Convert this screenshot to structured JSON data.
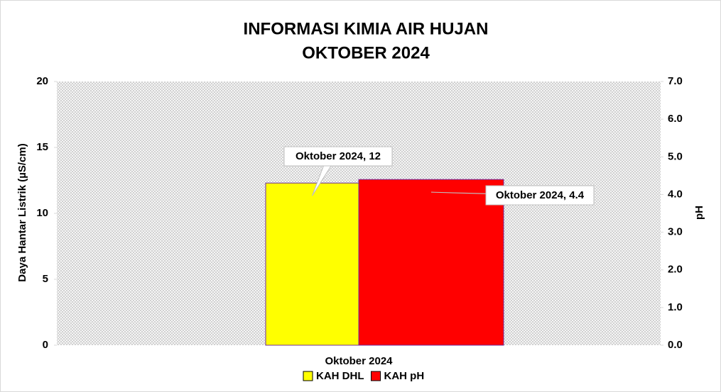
{
  "chart_data": {
    "type": "bar",
    "title": "INFORMASI  KIMIA AIR HUJAN",
    "subtitle": "OKTOBER 2024",
    "y_label": "Daya Hantar Listrik (µS/cm)",
    "y2_label": "pH",
    "categories": [
      "Oktober 2024"
    ],
    "series": [
      {
        "name": "KAH DHL",
        "color": "#ffff00",
        "values": [
          12.3
        ],
        "value_labels": [
          "Oktober 2024, 12"
        ]
      },
      {
        "name": "KAH pH",
        "color": "#ff0000",
        "values": [
          4.4
        ],
        "value_labels": [
          "Oktober 2024, 4.4"
        ],
        "axis": "y2"
      }
    ],
    "ylim": [
      0,
      20
    ],
    "yticks": [
      0,
      5,
      10,
      15,
      20
    ],
    "y2lim": [
      0,
      7
    ],
    "y2ticks": [
      {
        "value": 0,
        "label": "0.0"
      },
      {
        "value": 1,
        "label": "1.0"
      },
      {
        "value": 2,
        "label": "2.0"
      },
      {
        "value": 3,
        "label": "3.0"
      },
      {
        "value": 4,
        "label": "4.0"
      },
      {
        "value": 5,
        "label": "5.0"
      },
      {
        "value": 6,
        "label": "6.0"
      },
      {
        "value": 7,
        "label": "7.0"
      }
    ],
    "grid": false,
    "legend": "bottom"
  }
}
